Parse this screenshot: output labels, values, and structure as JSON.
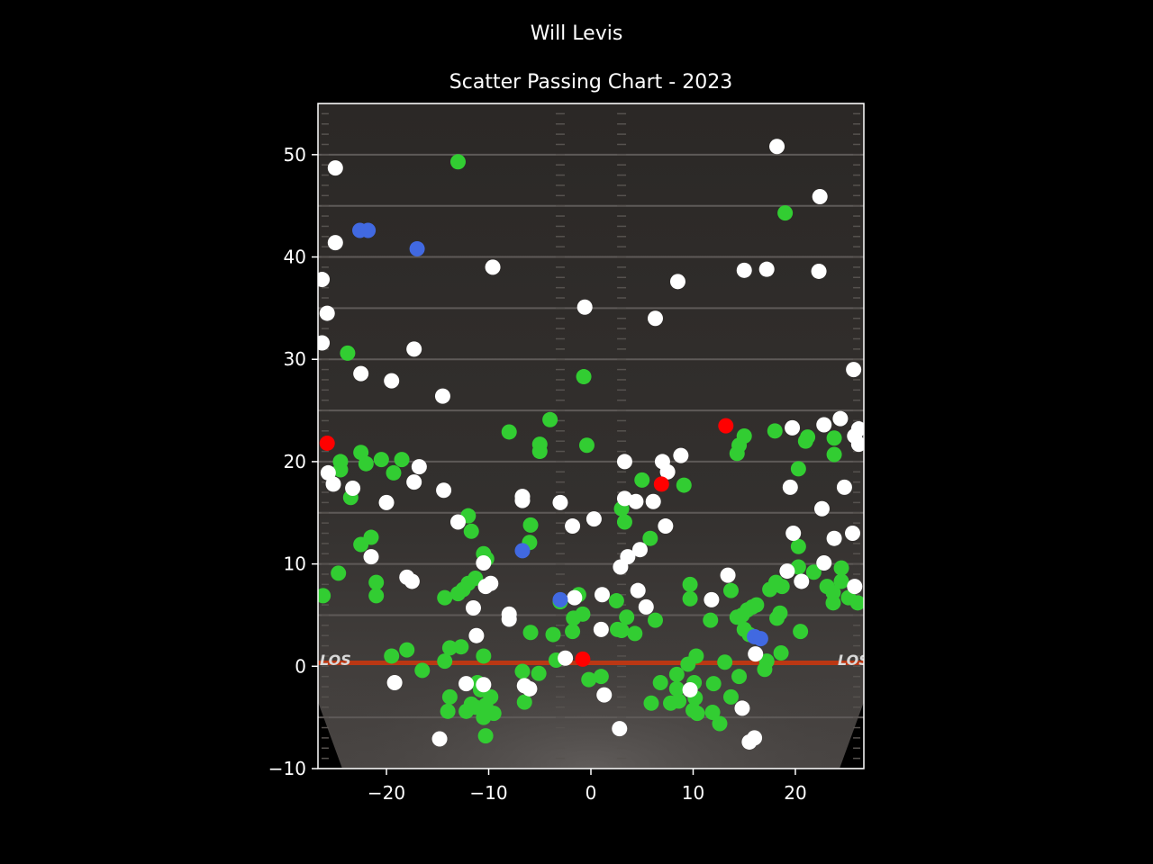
{
  "chart_data": {
    "type": "scatter",
    "title": "Scatter Passing Chart - 2023",
    "suptitle": "Will Levis",
    "xlabel": "",
    "ylabel": "",
    "xlim": [
      -26.7,
      26.7
    ],
    "ylim": [
      -10,
      55
    ],
    "xticks": [
      -20,
      -10,
      0,
      10,
      20
    ],
    "xtick_labels": [
      "−20",
      "−10",
      "0",
      "10",
      "20"
    ],
    "yticks": [
      -10,
      0,
      10,
      20,
      30,
      40,
      50
    ],
    "ytick_labels": [
      "−10",
      "0",
      "10",
      "20",
      "30",
      "40",
      "50"
    ],
    "grid": false,
    "background": "football field image",
    "field_marking_text": "LOS",
    "colors": {
      "complete": "#32cd32",
      "incomplete": "#ffffff",
      "touchdown": "#4169e1",
      "interception": "#ff0000",
      "line_of_scrimmage": "#c8360f",
      "page_background": "#000000"
    },
    "series": [
      {
        "color": "#32cd32",
        "points": [
          [
            -13,
            49.3
          ],
          [
            19,
            44.3
          ],
          [
            -0.7,
            28.3
          ],
          [
            -23.8,
            30.6
          ],
          [
            -4,
            24.1
          ],
          [
            -8,
            22.9
          ],
          [
            -5,
            21.7
          ],
          [
            -5,
            21
          ],
          [
            -0.4,
            21.6
          ],
          [
            -22.5,
            20.9
          ],
          [
            -24.5,
            20
          ],
          [
            -24.5,
            19.2
          ],
          [
            -22,
            19.8
          ],
          [
            -20.5,
            20.2
          ],
          [
            -18.5,
            20.2
          ],
          [
            -19.3,
            18.9
          ],
          [
            -23.5,
            16.5
          ],
          [
            -22.5,
            11.9
          ],
          [
            -21.5,
            12.6
          ],
          [
            -24.7,
            9.1
          ],
          [
            -21,
            8.2
          ],
          [
            -21,
            6.9
          ],
          [
            -26.2,
            6.9
          ],
          [
            -12,
            14.7
          ],
          [
            -11.7,
            13.2
          ],
          [
            -5.9,
            13.8
          ],
          [
            -6,
            12.1
          ],
          [
            -10.5,
            11
          ],
          [
            -10.2,
            10.5
          ],
          [
            -11.3,
            8.6
          ],
          [
            -12,
            8.1
          ],
          [
            -12.5,
            7.5
          ],
          [
            -13,
            7.1
          ],
          [
            -14.3,
            6.7
          ],
          [
            -5.9,
            3.3
          ],
          [
            -3.7,
            3.1
          ],
          [
            -1.8,
            3.4
          ],
          [
            -1.7,
            4.7
          ],
          [
            -0.8,
            5.1
          ],
          [
            -1.2,
            7
          ],
          [
            -3,
            6.3
          ],
          [
            -12.7,
            1.9
          ],
          [
            -13.8,
            1.8
          ],
          [
            -14.3,
            0.5
          ],
          [
            -16.5,
            -0.4
          ],
          [
            -18,
            1.6
          ],
          [
            -19.5,
            1
          ],
          [
            -10.5,
            1
          ],
          [
            -6.7,
            -0.5
          ],
          [
            -5.1,
            -0.7
          ],
          [
            -6.5,
            -3.5
          ],
          [
            -3.4,
            0.6
          ],
          [
            -13.8,
            -3
          ],
          [
            -14,
            -4.4
          ],
          [
            -12.2,
            -4.4
          ],
          [
            -11.7,
            -3.7
          ],
          [
            -11.3,
            -4
          ],
          [
            -10.8,
            -2.3
          ],
          [
            -10.3,
            -3.8
          ],
          [
            -9.8,
            -3
          ],
          [
            -10.5,
            -5
          ],
          [
            -9.5,
            -4.6
          ],
          [
            -10.3,
            -6.8
          ],
          [
            -11.1,
            -1.6
          ],
          [
            -0.2,
            -1.3
          ],
          [
            1,
            -1
          ],
          [
            3,
            15.4
          ],
          [
            3.3,
            14.1
          ],
          [
            5,
            18.2
          ],
          [
            5.8,
            12.5
          ],
          [
            2.5,
            6.4
          ],
          [
            3.5,
            4.8
          ],
          [
            4.3,
            3.2
          ],
          [
            2.6,
            3.6
          ],
          [
            3,
            3.5
          ],
          [
            6.3,
            4.5
          ],
          [
            6.8,
            -1.6
          ],
          [
            5.9,
            -3.6
          ],
          [
            7.8,
            -3.6
          ],
          [
            8.6,
            -3.4
          ],
          [
            8.4,
            -2.2
          ],
          [
            8.4,
            -0.8
          ],
          [
            9.5,
            0.2
          ],
          [
            10.3,
            1
          ],
          [
            10.1,
            -1.6
          ],
          [
            10.2,
            -3.1
          ],
          [
            10,
            -4.3
          ],
          [
            10.4,
            -4.6
          ],
          [
            9.7,
            6.6
          ],
          [
            9.7,
            8
          ],
          [
            9.1,
            17.7
          ],
          [
            11.7,
            4.5
          ],
          [
            12,
            -1.7
          ],
          [
            11.9,
            -4.5
          ],
          [
            12.6,
            -5.6
          ],
          [
            13.1,
            0.4
          ],
          [
            13.7,
            -3
          ],
          [
            14.5,
            -1
          ],
          [
            13.7,
            7.4
          ],
          [
            14.3,
            4.8
          ],
          [
            14.8,
            5
          ],
          [
            15.3,
            5.5
          ],
          [
            15.8,
            5.8
          ],
          [
            16.2,
            6
          ],
          [
            15,
            3.6
          ],
          [
            15.5,
            3.1
          ],
          [
            14.3,
            20.8
          ],
          [
            14.5,
            21.6
          ],
          [
            15,
            22.5
          ],
          [
            18,
            23
          ],
          [
            21,
            22
          ],
          [
            21.2,
            22.4
          ],
          [
            23.8,
            22.3
          ],
          [
            23.8,
            20.7
          ],
          [
            20.3,
            19.3
          ],
          [
            20.3,
            11.7
          ],
          [
            20.3,
            9.7
          ],
          [
            21.8,
            9.2
          ],
          [
            23.1,
            7.8
          ],
          [
            23.7,
            7.2
          ],
          [
            23.7,
            6.2
          ],
          [
            24.5,
            9.6
          ],
          [
            24.5,
            8.3
          ],
          [
            25.2,
            6.7
          ],
          [
            26.1,
            6.2
          ],
          [
            17.5,
            7.5
          ],
          [
            18.1,
            8.2
          ],
          [
            18.7,
            7.8
          ],
          [
            18.2,
            4.7
          ],
          [
            18.5,
            5.2
          ],
          [
            20.5,
            3.4
          ],
          [
            18.6,
            1.3
          ],
          [
            17.2,
            0.5
          ],
          [
            17,
            -0.3
          ]
        ]
      },
      {
        "color": "#ffffff",
        "points": [
          [
            18.2,
            50.8
          ],
          [
            22.4,
            45.9
          ],
          [
            -25,
            48.7
          ],
          [
            -25,
            41.4
          ],
          [
            -26.3,
            37.8
          ],
          [
            -25.8,
            34.5
          ],
          [
            -26.3,
            31.6
          ],
          [
            -17.3,
            31
          ],
          [
            -22.5,
            28.6
          ],
          [
            -19.5,
            27.9
          ],
          [
            -14.5,
            26.4
          ],
          [
            -9.6,
            39
          ],
          [
            -0.6,
            35.1
          ],
          [
            6.3,
            34
          ],
          [
            8.5,
            37.6
          ],
          [
            15,
            38.7
          ],
          [
            17.2,
            38.8
          ],
          [
            22.3,
            38.6
          ],
          [
            25.7,
            29
          ],
          [
            19.7,
            23.3
          ],
          [
            22.8,
            23.6
          ],
          [
            24.4,
            24.2
          ],
          [
            26.2,
            23.2
          ],
          [
            25.8,
            22.5
          ],
          [
            26.2,
            21.7
          ],
          [
            -25.7,
            18.9
          ],
          [
            -25.2,
            17.8
          ],
          [
            -23.3,
            17.4
          ],
          [
            -17.3,
            18
          ],
          [
            -16.8,
            19.5
          ],
          [
            -14.4,
            17.2
          ],
          [
            -20,
            16
          ],
          [
            -6.7,
            16.6
          ],
          [
            -6.7,
            16.2
          ],
          [
            -3,
            16
          ],
          [
            -1.8,
            13.7
          ],
          [
            0.3,
            14.4
          ],
          [
            -13,
            14.1
          ],
          [
            -21.5,
            10.7
          ],
          [
            -18,
            8.7
          ],
          [
            -17.5,
            8.3
          ],
          [
            -10.5,
            10.1
          ],
          [
            -9.8,
            8.1
          ],
          [
            -10.3,
            7.8
          ],
          [
            -11.5,
            5.7
          ],
          [
            -8,
            5.1
          ],
          [
            -8,
            4.6
          ],
          [
            -11.2,
            3
          ],
          [
            -1.6,
            6.7
          ],
          [
            1.1,
            7
          ],
          [
            1,
            3.6
          ],
          [
            -2.5,
            0.8
          ],
          [
            -12.2,
            -1.7
          ],
          [
            -10.5,
            -1.8
          ],
          [
            -19.2,
            -1.6
          ],
          [
            -6.5,
            -1.9
          ],
          [
            -6,
            -2.2
          ],
          [
            1.3,
            -2.8
          ],
          [
            -14.8,
            -7.1
          ],
          [
            2.8,
            -6.1
          ],
          [
            15.5,
            -7.4
          ],
          [
            16,
            -7
          ],
          [
            14.8,
            -4.1
          ],
          [
            9.7,
            -2.3
          ],
          [
            16.1,
            1.2
          ],
          [
            13.4,
            8.9
          ],
          [
            11.8,
            6.5
          ],
          [
            5.4,
            5.8
          ],
          [
            4.6,
            7.4
          ],
          [
            2.9,
            9.7
          ],
          [
            3.6,
            10.7
          ],
          [
            4.8,
            11.4
          ],
          [
            3.3,
            16.4
          ],
          [
            4.4,
            16.1
          ],
          [
            6.1,
            16.1
          ],
          [
            3.3,
            20
          ],
          [
            7,
            20
          ],
          [
            7.5,
            19
          ],
          [
            8.8,
            20.6
          ],
          [
            7.3,
            13.7
          ],
          [
            19.5,
            17.5
          ],
          [
            22.6,
            15.4
          ],
          [
            19.8,
            13
          ],
          [
            23.8,
            12.5
          ],
          [
            25.6,
            13
          ],
          [
            19.2,
            9.3
          ],
          [
            20.6,
            8.3
          ],
          [
            22.8,
            10.1
          ],
          [
            25.8,
            7.8
          ],
          [
            24.8,
            17.5
          ]
        ]
      },
      {
        "color": "#4169e1",
        "points": [
          [
            -22.6,
            42.6
          ],
          [
            -21.8,
            42.6
          ],
          [
            -17,
            40.8
          ],
          [
            -6.7,
            11.3
          ],
          [
            -3,
            6.5
          ],
          [
            16,
            2.9
          ],
          [
            16.6,
            2.7
          ]
        ]
      },
      {
        "color": "#ff0000",
        "points": [
          [
            -25.8,
            21.8
          ],
          [
            13.2,
            23.5
          ],
          [
            6.9,
            17.8
          ],
          [
            -0.8,
            0.7
          ]
        ]
      }
    ]
  }
}
